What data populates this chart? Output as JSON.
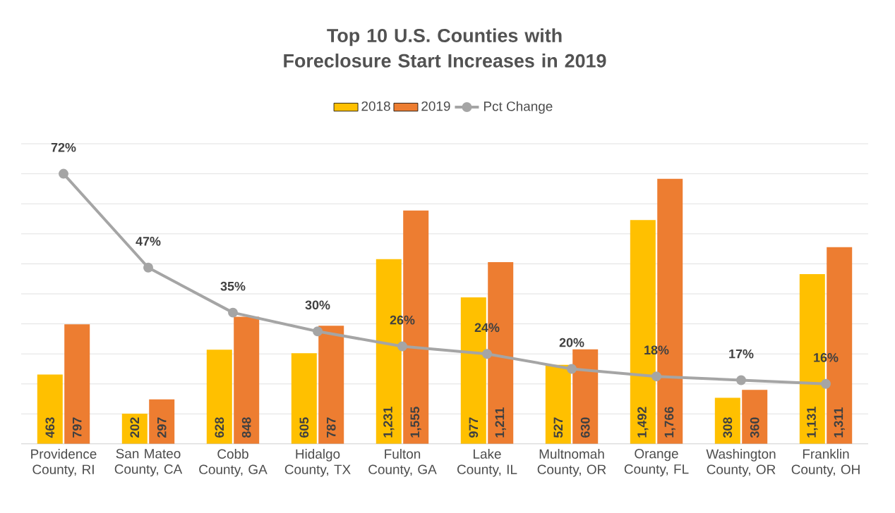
{
  "chart_data": {
    "type": "bar",
    "title": "Top 10 U.S. Counties with Foreclosure Start Increases in 2019",
    "categories": [
      "Providence County, RI",
      "San Mateo County, CA",
      "Cobb County, GA",
      "Hidalgo County, TX",
      "Fulton County, GA",
      "Lake County, IL",
      "Multnomah County, OR",
      "Orange County, FL",
      "Washington County, OR",
      "Franklin County, OH"
    ],
    "series": [
      {
        "name": "2018",
        "color": "#ffc000",
        "values": [
          463,
          202,
          628,
          605,
          1231,
          977,
          527,
          1492,
          308,
          1131
        ],
        "value_labels": [
          "463",
          "202",
          "628",
          "605",
          "1,231",
          "977",
          "527",
          "1,492",
          "308",
          "1,131"
        ]
      },
      {
        "name": "2019",
        "color": "#ed7d31",
        "values": [
          797,
          297,
          848,
          787,
          1555,
          1211,
          630,
          1766,
          360,
          1311
        ],
        "value_labels": [
          "797",
          "297",
          "848",
          "787",
          "1,555",
          "1,211",
          "630",
          "1,766",
          "360",
          "1,311"
        ]
      },
      {
        "name": "Pct Change",
        "type": "line",
        "axis": "y2",
        "color": "#a5a5a5",
        "marker": "circle",
        "values": [
          72,
          47,
          35,
          30,
          26,
          24,
          20,
          18,
          17,
          16
        ],
        "value_labels": [
          "72%",
          "47%",
          "35%",
          "30%",
          "26%",
          "24%",
          "20%",
          "18%",
          "17%",
          "16%"
        ]
      }
    ],
    "ylim": [
      0,
      2000
    ],
    "yticks": [
      {
        "value": 0,
        "label": null
      },
      {
        "value": 200,
        "label": null
      },
      {
        "value": 400,
        "label": null
      },
      {
        "value": 600,
        "label": null
      },
      {
        "value": 800,
        "label": null
      },
      {
        "value": 1000,
        "label": null
      },
      {
        "value": 1200,
        "label": null
      },
      {
        "value": 1400,
        "label": null
      },
      {
        "value": 1600,
        "label": null
      },
      {
        "value": 1800,
        "label": null
      },
      {
        "value": 2000,
        "label": null
      }
    ],
    "y2lim": [
      0,
      80
    ],
    "grid": "y",
    "legend": "top",
    "tick_labels": "x"
  }
}
